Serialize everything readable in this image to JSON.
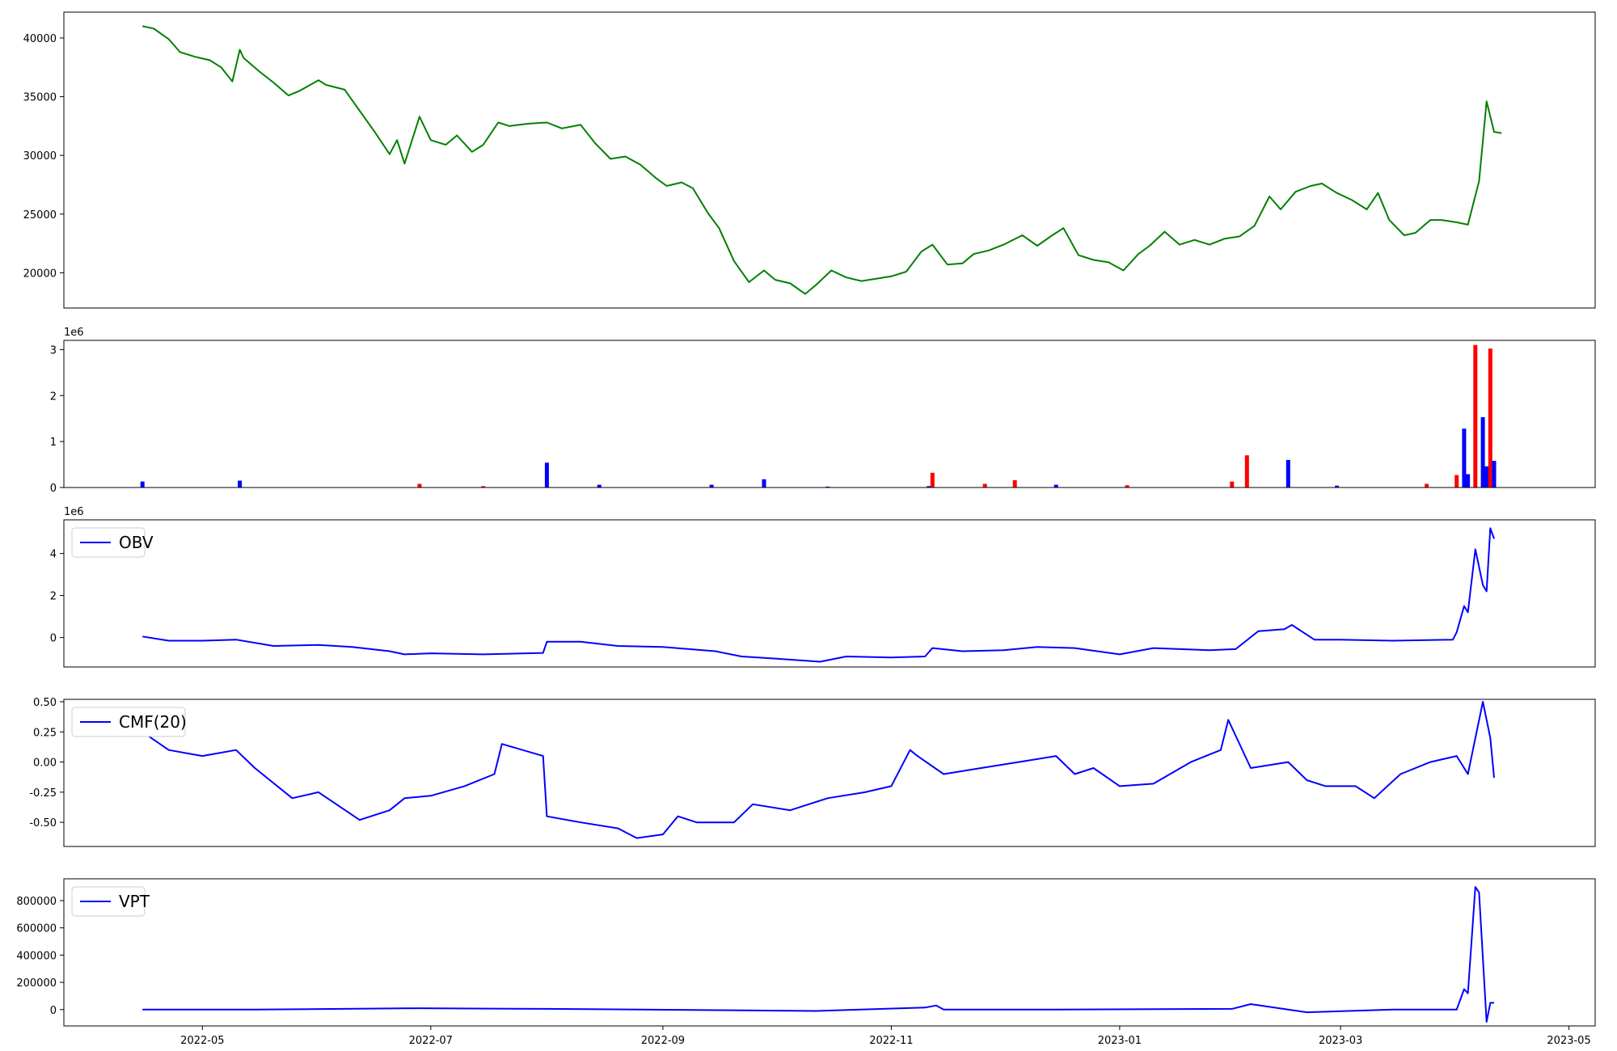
{
  "chart_data": [
    {
      "type": "line",
      "panel": "price",
      "color": "#008000",
      "x": [
        "2022-04-15",
        "2022-04-18",
        "2022-04-22",
        "2022-04-25",
        "2022-04-29",
        "2022-05-03",
        "2022-05-06",
        "2022-05-09",
        "2022-05-11",
        "2022-05-12",
        "2022-05-16",
        "2022-05-20",
        "2022-05-24",
        "2022-05-27",
        "2022-06-01",
        "2022-06-03",
        "2022-06-08",
        "2022-06-12",
        "2022-06-16",
        "2022-06-20",
        "2022-06-22",
        "2022-06-24",
        "2022-06-28",
        "2022-07-01",
        "2022-07-05",
        "2022-07-08",
        "2022-07-12",
        "2022-07-15",
        "2022-07-19",
        "2022-07-22",
        "2022-07-27",
        "2022-08-01",
        "2022-08-05",
        "2022-08-10",
        "2022-08-14",
        "2022-08-18",
        "2022-08-22",
        "2022-08-26",
        "2022-08-30",
        "2022-09-02",
        "2022-09-06",
        "2022-09-09",
        "2022-09-13",
        "2022-09-16",
        "2022-09-20",
        "2022-09-24",
        "2022-09-28",
        "2022-10-01",
        "2022-10-05",
        "2022-10-09",
        "2022-10-12",
        "2022-10-16",
        "2022-10-20",
        "2022-10-24",
        "2022-10-28",
        "2022-11-01",
        "2022-11-05",
        "2022-11-09",
        "2022-11-12",
        "2022-11-16",
        "2022-11-20",
        "2022-11-23",
        "2022-11-27",
        "2022-12-01",
        "2022-12-06",
        "2022-12-10",
        "2022-12-14",
        "2022-12-17",
        "2022-12-21",
        "2022-12-25",
        "2022-12-29",
        "2023-01-02",
        "2023-01-06",
        "2023-01-09",
        "2023-01-13",
        "2023-01-17",
        "2023-01-21",
        "2023-01-25",
        "2023-01-29",
        "2023-02-02",
        "2023-02-06",
        "2023-02-10",
        "2023-02-13",
        "2023-02-17",
        "2023-02-21",
        "2023-02-24",
        "2023-02-28",
        "2023-03-04",
        "2023-03-08",
        "2023-03-11",
        "2023-03-14",
        "2023-03-18",
        "2023-03-21",
        "2023-03-25",
        "2023-03-28",
        "2023-04-01",
        "2023-04-04",
        "2023-04-07",
        "2023-04-09",
        "2023-04-11",
        "2023-04-13"
      ],
      "y": [
        41000,
        40800,
        39900,
        38800,
        38400,
        38100,
        37500,
        36300,
        39000,
        38300,
        37200,
        36200,
        35100,
        35500,
        36400,
        36000,
        35600,
        33800,
        32000,
        30100,
        31300,
        29300,
        33300,
        31300,
        30900,
        31700,
        30300,
        30900,
        32800,
        32500,
        32700,
        32800,
        32300,
        32600,
        31000,
        29700,
        29900,
        29200,
        28100,
        27400,
        27700,
        27200,
        25100,
        23800,
        21000,
        19200,
        20200,
        19400,
        19100,
        18200,
        19000,
        20200,
        19600,
        19300,
        19500,
        19700,
        20100,
        21800,
        22400,
        20700,
        20800,
        21600,
        21900,
        22400,
        23200,
        22300,
        23200,
        23800,
        21500,
        21100,
        20900,
        20200,
        21600,
        22300,
        23500,
        22400,
        22800,
        22400,
        22900,
        23100,
        24000,
        26500,
        25400,
        26900,
        27400,
        27600,
        26800,
        26200,
        25400,
        26800,
        24500,
        23200,
        23400,
        24500,
        24500,
        24300,
        24100,
        27800,
        34600,
        32000,
        31900
      ],
      "ylim": [
        17000,
        42200
      ],
      "yticks": [
        20000,
        25000,
        30000,
        35000,
        40000
      ],
      "ytick_labels": [
        "20000",
        "25000",
        "30000",
        "35000",
        "40000"
      ]
    },
    {
      "type": "bar",
      "panel": "volume",
      "colors": {
        "up": "#0000ff",
        "down": "#ff0000"
      },
      "offset_label": "1e6",
      "x": [
        "2022-04-15",
        "2022-05-11",
        "2022-06-28",
        "2022-07-15",
        "2022-08-01",
        "2022-08-15",
        "2022-09-14",
        "2022-09-28",
        "2022-10-15",
        "2022-11-11",
        "2022-11-12",
        "2022-11-26",
        "2022-12-04",
        "2022-12-15",
        "2023-01-03",
        "2023-01-31",
        "2023-02-04",
        "2023-02-15",
        "2023-02-28",
        "2023-03-24",
        "2023-04-01",
        "2023-04-03",
        "2023-04-04",
        "2023-04-06",
        "2023-04-08",
        "2023-04-09",
        "2023-04-10",
        "2023-04-11"
      ],
      "values": [
        130000,
        150000,
        80000,
        30000,
        540000,
        60000,
        60000,
        180000,
        20000,
        30000,
        320000,
        80000,
        160000,
        60000,
        50000,
        130000,
        700000,
        600000,
        40000,
        80000,
        270000,
        1280000,
        290000,
        3100000,
        1530000,
        460000,
        3020000,
        580000
      ],
      "direction": [
        "up",
        "up",
        "down",
        "down",
        "up",
        "up",
        "up",
        "up",
        "up",
        "up",
        "down",
        "down",
        "down",
        "up",
        "down",
        "down",
        "down",
        "up",
        "up",
        "down",
        "down",
        "up",
        "up",
        "down",
        "up",
        "up",
        "down",
        "up"
      ],
      "ylim": [
        0,
        3200000
      ],
      "yticks": [
        0,
        1000000,
        2000000,
        3000000
      ],
      "ytick_labels": [
        "0",
        "1",
        "2",
        "3"
      ]
    },
    {
      "type": "line",
      "panel": "obv",
      "color": "#0000ff",
      "legend": [
        "OBV"
      ],
      "offset_label": "1e6",
      "x": [
        "2022-04-15",
        "2022-04-22",
        "2022-05-01",
        "2022-05-10",
        "2022-05-20",
        "2022-06-01",
        "2022-06-10",
        "2022-06-20",
        "2022-06-24",
        "2022-07-01",
        "2022-07-15",
        "2022-07-31",
        "2022-08-01",
        "2022-08-10",
        "2022-08-20",
        "2022-09-01",
        "2022-09-15",
        "2022-09-22",
        "2022-10-01",
        "2022-10-13",
        "2022-10-20",
        "2022-11-01",
        "2022-11-10",
        "2022-11-12",
        "2022-11-20",
        "2022-12-01",
        "2022-12-10",
        "2022-12-20",
        "2023-01-01",
        "2023-01-10",
        "2023-01-25",
        "2023-02-01",
        "2023-02-07",
        "2023-02-14",
        "2023-02-16",
        "2023-02-22",
        "2023-03-01",
        "2023-03-15",
        "2023-03-31",
        "2023-04-01",
        "2023-04-03",
        "2023-04-04",
        "2023-04-06",
        "2023-04-08",
        "2023-04-09",
        "2023-04-10",
        "2023-04-11"
      ],
      "y": [
        50000,
        -150000,
        -150000,
        -100000,
        -400000,
        -350000,
        -450000,
        -650000,
        -800000,
        -750000,
        -800000,
        -730000,
        -200000,
        -200000,
        -400000,
        -450000,
        -650000,
        -900000,
        -1000000,
        -1150000,
        -900000,
        -950000,
        -900000,
        -500000,
        -650000,
        -600000,
        -450000,
        -500000,
        -800000,
        -500000,
        -600000,
        -550000,
        300000,
        400000,
        600000,
        -100000,
        -100000,
        -150000,
        -100000,
        250000,
        1500000,
        1200000,
        4200000,
        2500000,
        2200000,
        5200000,
        4700000
      ],
      "ylim": [
        -1400000,
        5600000
      ],
      "yticks": [
        0,
        2000000,
        4000000
      ],
      "ytick_labels": [
        "0",
        "2",
        "4"
      ]
    },
    {
      "type": "line",
      "panel": "cmf",
      "color": "#0000ff",
      "legend": [
        "CMF(20)"
      ],
      "x": [
        "2022-04-15",
        "2022-04-22",
        "2022-05-01",
        "2022-05-10",
        "2022-05-15",
        "2022-05-25",
        "2022-06-01",
        "2022-06-12",
        "2022-06-20",
        "2022-06-24",
        "2022-07-01",
        "2022-07-10",
        "2022-07-18",
        "2022-07-20",
        "2022-07-31",
        "2022-08-01",
        "2022-08-10",
        "2022-08-20",
        "2022-08-25",
        "2022-09-01",
        "2022-09-05",
        "2022-09-10",
        "2022-09-20",
        "2022-09-25",
        "2022-10-05",
        "2022-10-15",
        "2022-10-25",
        "2022-11-01",
        "2022-11-06",
        "2022-11-08",
        "2022-11-15",
        "2022-11-25",
        "2022-12-05",
        "2022-12-15",
        "2022-12-20",
        "2022-12-25",
        "2023-01-01",
        "2023-01-10",
        "2023-01-20",
        "2023-01-28",
        "2023-01-30",
        "2023-02-05",
        "2023-02-15",
        "2023-02-20",
        "2023-02-25",
        "2023-03-05",
        "2023-03-10",
        "2023-03-17",
        "2023-03-25",
        "2023-04-01",
        "2023-04-04",
        "2023-04-08",
        "2023-04-10",
        "2023-04-11"
      ],
      "y": [
        0.25,
        0.1,
        0.05,
        0.1,
        -0.05,
        -0.3,
        -0.25,
        -0.48,
        -0.4,
        -0.3,
        -0.28,
        -0.2,
        -0.1,
        0.15,
        0.05,
        -0.45,
        -0.5,
        -0.55,
        -0.63,
        -0.6,
        -0.45,
        -0.5,
        -0.5,
        -0.35,
        -0.4,
        -0.3,
        -0.25,
        -0.2,
        0.1,
        0.05,
        -0.1,
        -0.05,
        0.0,
        0.05,
        -0.1,
        -0.05,
        -0.2,
        -0.18,
        0.0,
        0.1,
        0.35,
        -0.05,
        0.0,
        -0.15,
        -0.2,
        -0.2,
        -0.3,
        -0.1,
        0.0,
        0.05,
        -0.1,
        0.5,
        0.2,
        -0.13
      ],
      "ylim": [
        -0.7,
        0.52
      ],
      "yticks": [
        -0.5,
        -0.25,
        0.0,
        0.25,
        0.5
      ],
      "ytick_labels": [
        "-0.50",
        "-0.25",
        "0.00",
        "0.25",
        "0.50"
      ]
    },
    {
      "type": "line",
      "panel": "vpt",
      "color": "#0000ff",
      "legend": [
        "VPT"
      ],
      "x": [
        "2022-04-15",
        "2022-05-15",
        "2022-06-28",
        "2022-08-01",
        "2022-09-20",
        "2022-10-12",
        "2022-11-10",
        "2022-11-13",
        "2022-11-15",
        "2022-12-15",
        "2023-01-31",
        "2023-02-05",
        "2023-02-15",
        "2023-02-20",
        "2023-03-15",
        "2023-04-01",
        "2023-04-03",
        "2023-04-04",
        "2023-04-06",
        "2023-04-07",
        "2023-04-09",
        "2023-04-10",
        "2023-04-11"
      ],
      "y": [
        0,
        0,
        10000,
        5000,
        -5000,
        -10000,
        15000,
        30000,
        0,
        0,
        5000,
        40000,
        0,
        -20000,
        0,
        0,
        150000,
        120000,
        900000,
        860000,
        -90000,
        50000,
        50000
      ],
      "ylim": [
        -120000,
        960000
      ],
      "yticks": [
        0,
        200000,
        400000,
        600000,
        800000
      ],
      "ytick_labels": [
        "0",
        "200000",
        "400000",
        "600000",
        "800000"
      ]
    }
  ],
  "x_axis": {
    "range": [
      "2022-03-25",
      "2023-05-08"
    ],
    "ticks": [
      "2022-05-01",
      "2022-07-01",
      "2022-09-01",
      "2022-11-01",
      "2023-01-01",
      "2023-03-01",
      "2023-05-01"
    ],
    "tick_labels": [
      "2022-05",
      "2022-07",
      "2022-09",
      "2022-11",
      "2023-01",
      "2023-03",
      "2023-05"
    ]
  }
}
